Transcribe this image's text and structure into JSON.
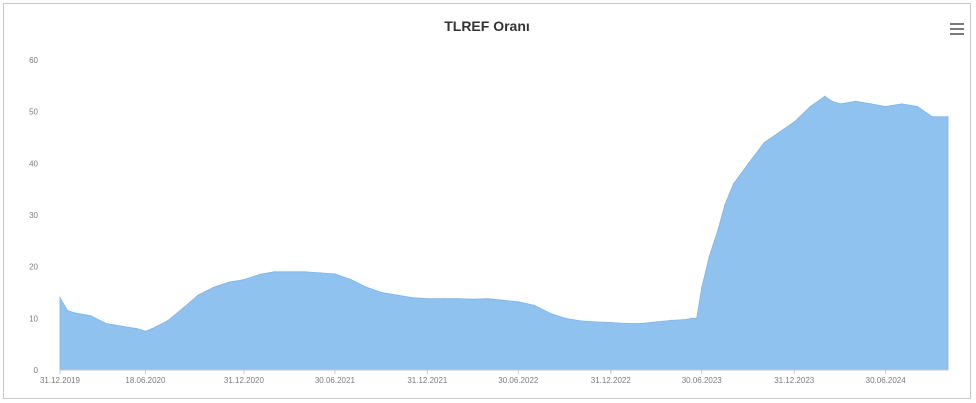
{
  "chart_data": {
    "type": "area",
    "title": "TLREF Oranı",
    "xlabel": "",
    "ylabel": "",
    "ylim": [
      0,
      60
    ],
    "y_ticks": [
      "0",
      "10",
      "20",
      "30",
      "40",
      "50",
      "60"
    ],
    "x_ticks": [
      "31.12.2019",
      "18.06.2020",
      "31.12.2020",
      "30.06.2021",
      "31.12.2021",
      "30.06.2022",
      "31.12.2022",
      "30.06.2023",
      "31.12.2023",
      "30.06.2024"
    ],
    "series": [
      {
        "color": "#90c2f0",
        "x": [
          "31.12.2019",
          "15.01.2020",
          "01.02.2020",
          "01.03.2020",
          "01.04.2020",
          "01.05.2020",
          "01.06.2020",
          "18.06.2020",
          "01.07.2020",
          "01.08.2020",
          "01.09.2020",
          "01.10.2020",
          "01.11.2020",
          "01.12.2020",
          "31.12.2020",
          "01.02.2021",
          "01.03.2021",
          "01.04.2021",
          "01.05.2021",
          "01.06.2021",
          "30.06.2021",
          "01.08.2021",
          "01.09.2021",
          "01.10.2021",
          "01.11.2021",
          "01.12.2021",
          "31.12.2021",
          "01.02.2022",
          "01.03.2022",
          "01.04.2022",
          "01.05.2022",
          "01.06.2022",
          "30.06.2022",
          "01.08.2022",
          "01.09.2022",
          "01.10.2022",
          "01.11.2022",
          "01.12.2022",
          "31.12.2022",
          "01.02.2023",
          "01.03.2023",
          "01.04.2023",
          "01.05.2023",
          "01.06.2023",
          "10.06.2023",
          "20.06.2023",
          "30.06.2023",
          "15.07.2023",
          "01.08.2023",
          "15.08.2023",
          "01.09.2023",
          "01.10.2023",
          "01.11.2023",
          "01.12.2023",
          "31.12.2023",
          "01.02.2024",
          "01.03.2024",
          "15.03.2024",
          "01.04.2024",
          "01.05.2024",
          "01.06.2024",
          "30.06.2024",
          "01.08.2024",
          "01.09.2024",
          "01.10.2024",
          "01.11.2024"
        ],
        "values": [
          14,
          11.5,
          11,
          10.5,
          9,
          8.5,
          8,
          7.5,
          8,
          9.5,
          12,
          14.5,
          16,
          17,
          17.5,
          18.5,
          19,
          19,
          19,
          18.8,
          18.6,
          17.5,
          16,
          15,
          14.5,
          14,
          13.8,
          13.8,
          13.8,
          13.7,
          13.8,
          13.5,
          13.2,
          12.5,
          11,
          10,
          9.5,
          9.3,
          9.2,
          9,
          9,
          9.3,
          9.6,
          9.8,
          10,
          10,
          16,
          22,
          27,
          32,
          36,
          40,
          44,
          46,
          48,
          51,
          53,
          52,
          51.5,
          52,
          51.5,
          51,
          51.5,
          51,
          49,
          49
        ]
      }
    ]
  }
}
